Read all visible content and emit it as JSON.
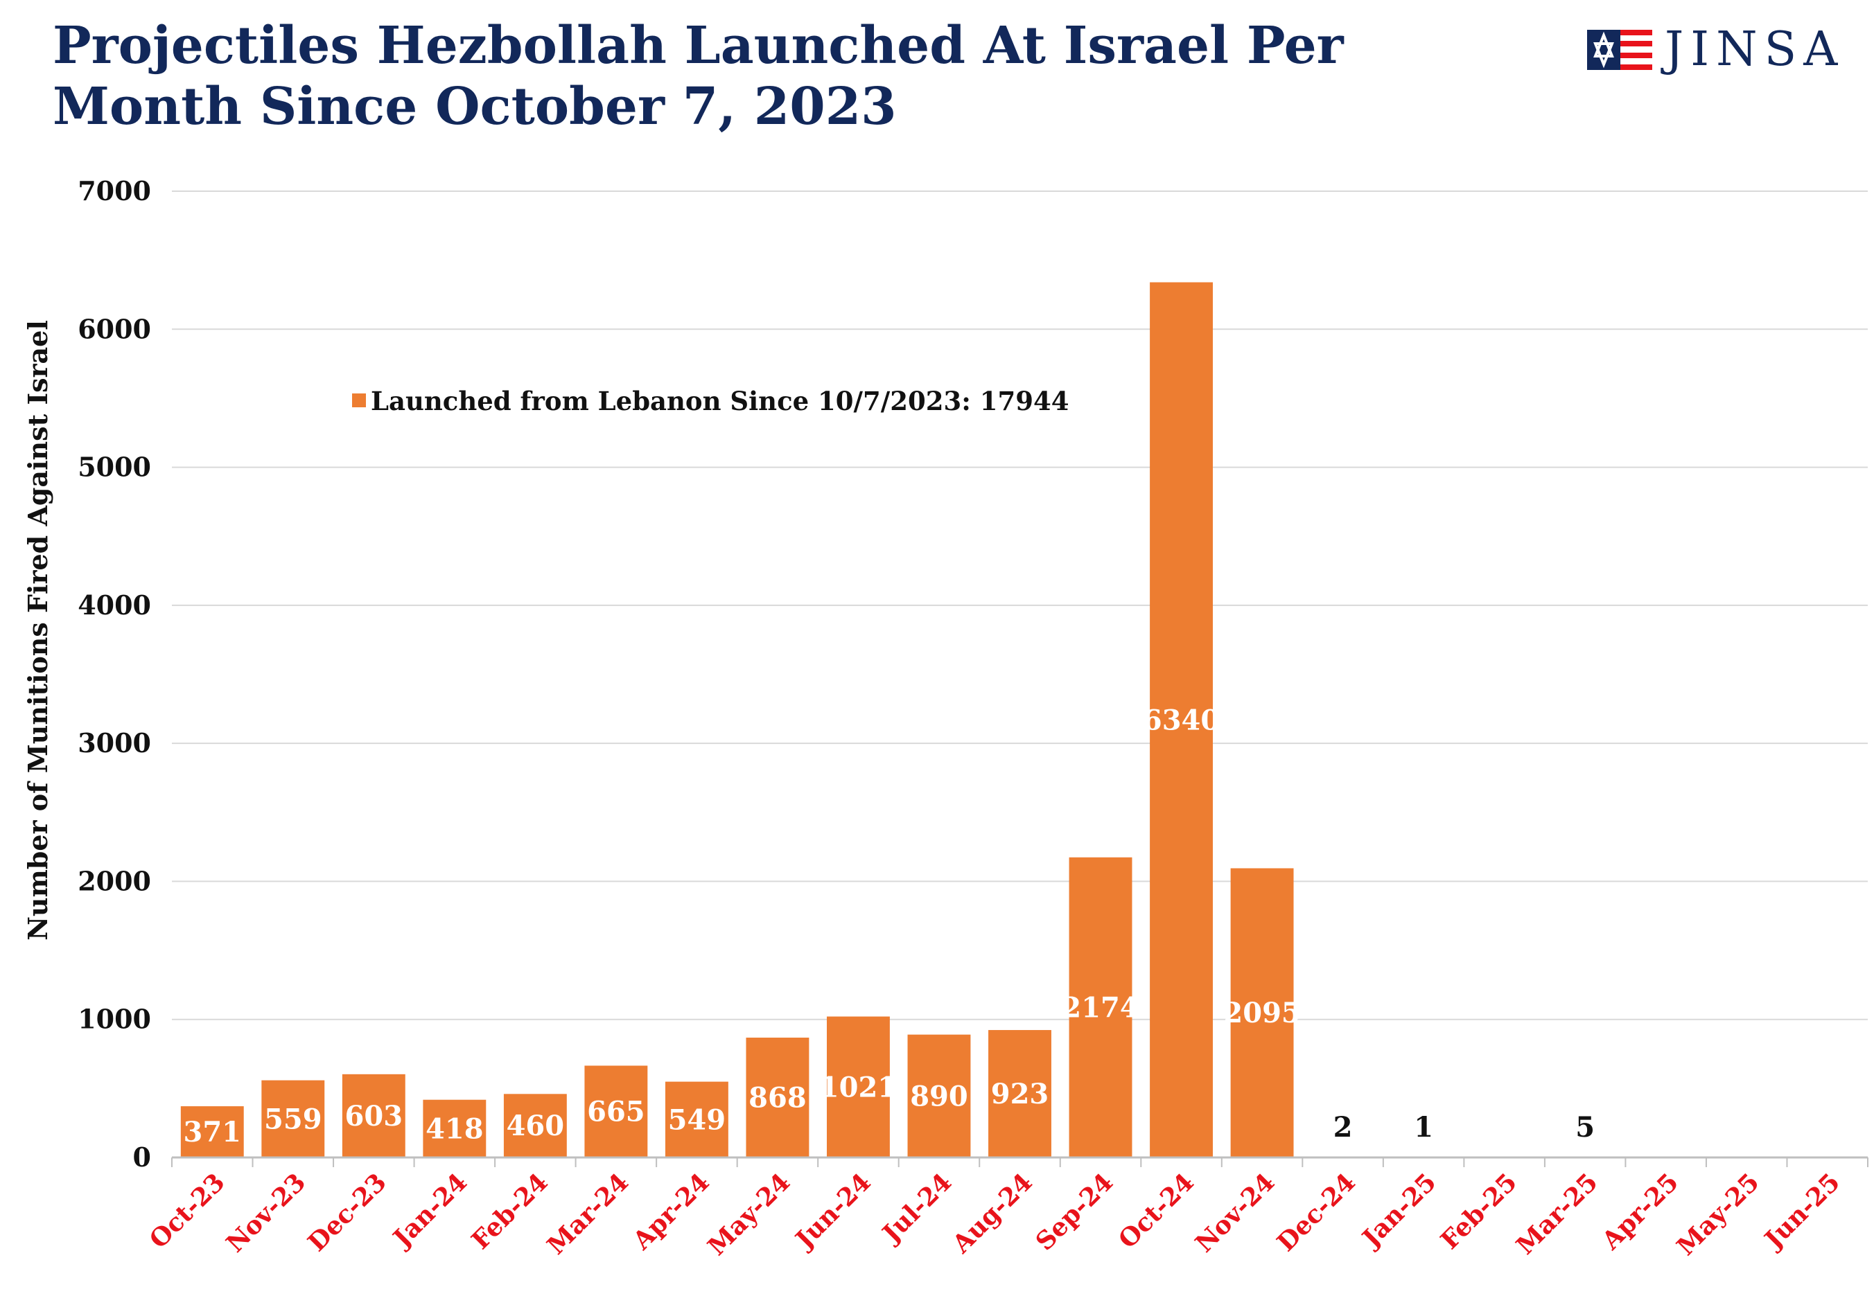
{
  "title": "Projectiles Hezbollah Launched At Israel Per Month Since October 7, 2023",
  "logo": {
    "text": "JINSA",
    "icon": "star-of-david-flag-icon"
  },
  "colors": {
    "bar": "#ed7d31",
    "title": "#12285a",
    "xtick": "#e8131b",
    "grid": "#d9d9d9",
    "label_inside": "#ffffff",
    "label_outside": "#111111"
  },
  "chart_data": {
    "type": "bar",
    "title": "Projectiles Hezbollah Launched At Israel Per Month Since October 7, 2023",
    "xlabel": "",
    "ylabel": "Number of Munitions Fired Against Israel",
    "ylim": [
      0,
      7000
    ],
    "yticks": [
      0,
      1000,
      2000,
      3000,
      4000,
      5000,
      6000,
      7000
    ],
    "grid": true,
    "legend_position": "upper-left",
    "categories": [
      "Oct-23",
      "Nov-23",
      "Dec-23",
      "Jan-24",
      "Feb-24",
      "Mar-24",
      "Apr-24",
      "May-24",
      "Jun-24",
      "Jul-24",
      "Aug-24",
      "Sep-24",
      "Oct-24",
      "Nov-24",
      "Dec-24",
      "Jan-25",
      "Feb-25",
      "Mar-25",
      "Apr-25",
      "May-25",
      "Jun-25"
    ],
    "series": [
      {
        "name": "Launched from Lebanon Since 10/7/2023: 17944",
        "values": [
          371,
          559,
          603,
          418,
          460,
          665,
          549,
          868,
          1021,
          890,
          923,
          2174,
          6340,
          2095,
          2,
          1,
          null,
          5,
          null,
          null,
          null
        ]
      }
    ]
  }
}
